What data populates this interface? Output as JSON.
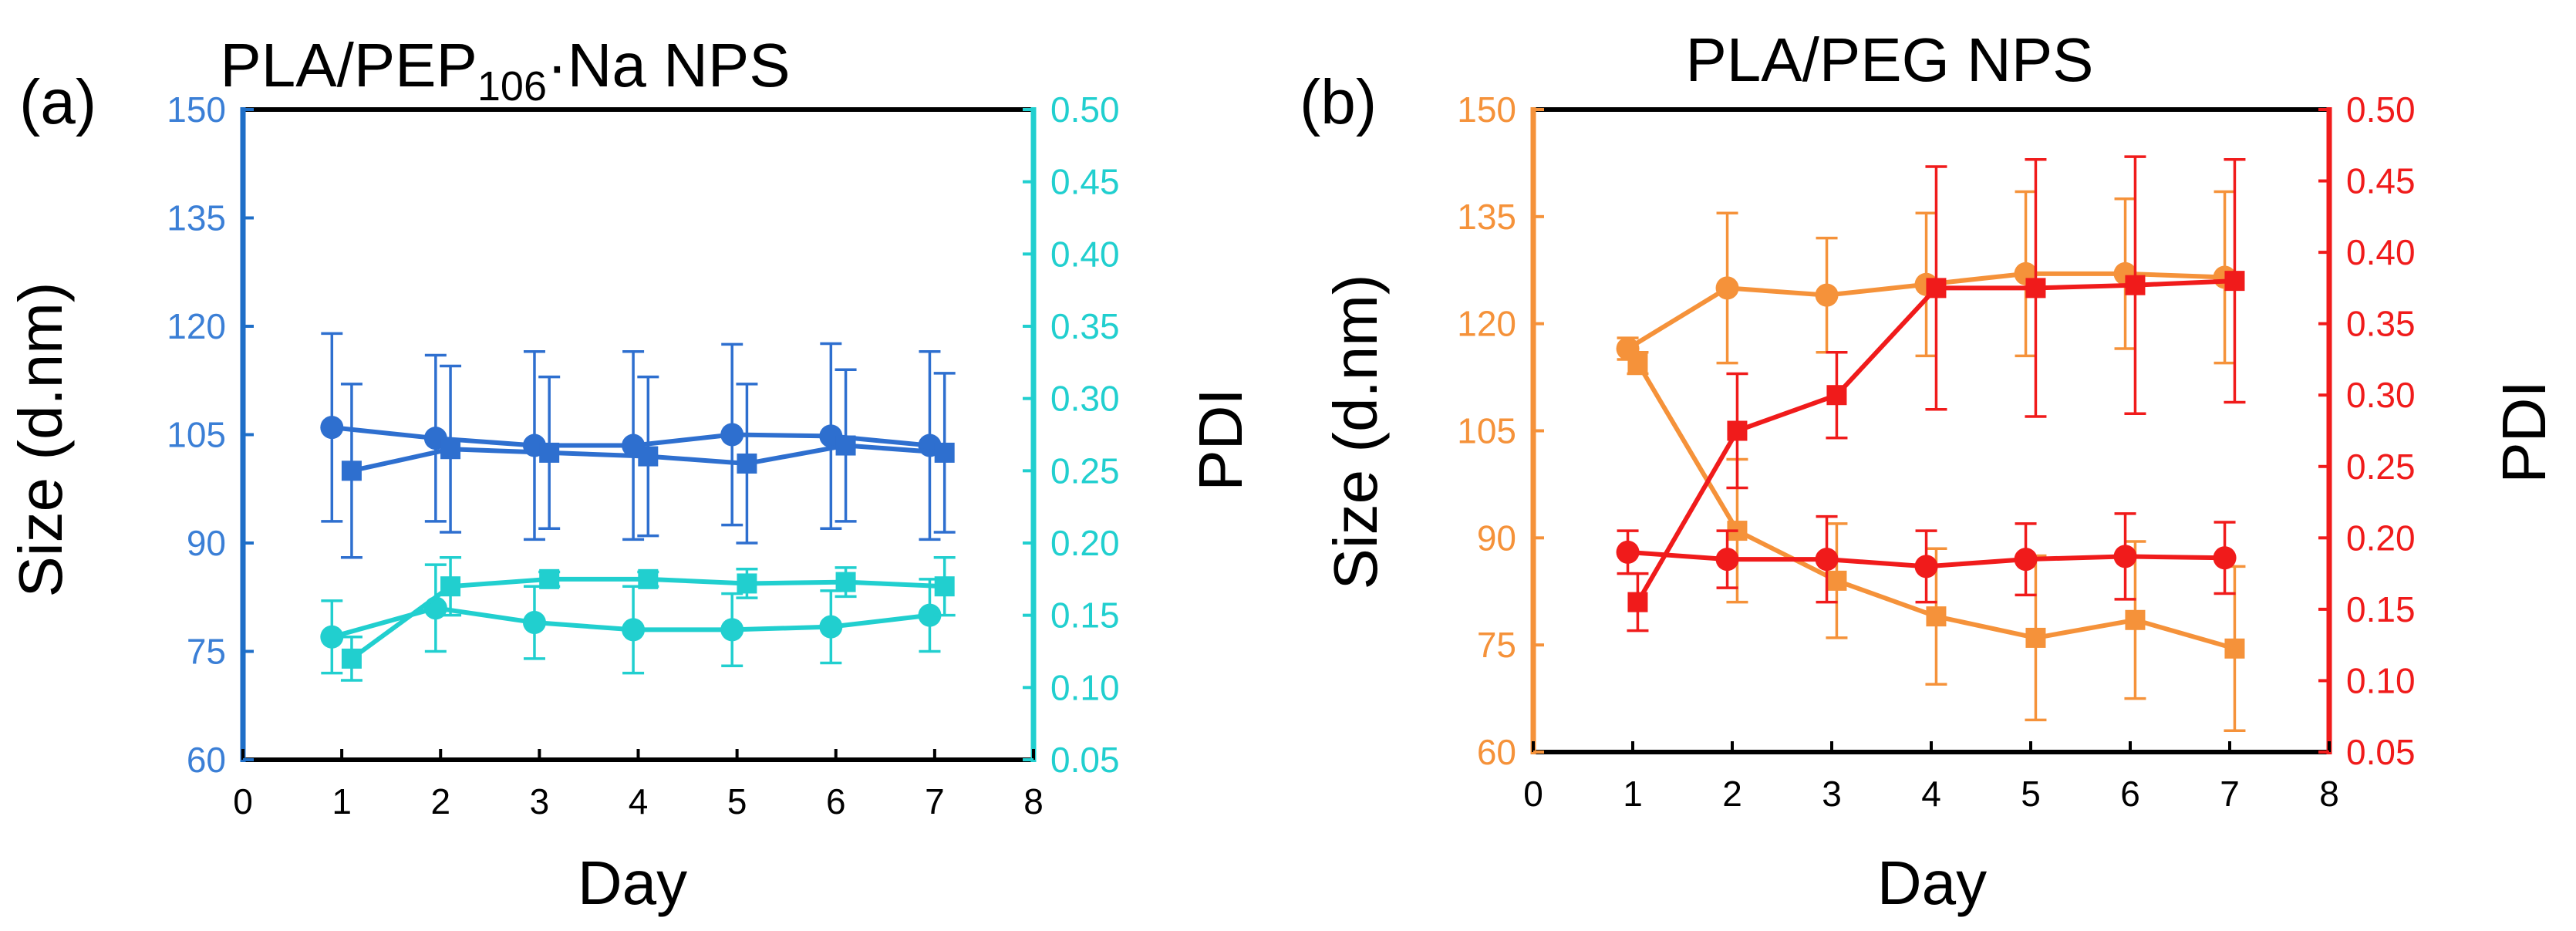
{
  "chart_data": [
    {
      "panel_label": "(a)",
      "type": "line",
      "title": "PLA/PEP",
      "title_subscript": "106",
      "title_suffix": "·Na NPS",
      "xlabel": "Day",
      "ylabel_left": "Size (d.nm)",
      "ylabel_right": "PDI",
      "xlim": [
        0,
        8
      ],
      "xticks": [
        "0",
        "1",
        "2",
        "3",
        "4",
        "5",
        "6",
        "7",
        "8"
      ],
      "ylim_left": [
        60,
        150
      ],
      "yticks_left": [
        "60",
        "75",
        "90",
        "105",
        "120",
        "135",
        "150"
      ],
      "ylim_right": [
        0.05,
        0.5
      ],
      "yticks_right": [
        "0.05",
        "0.10",
        "0.15",
        "0.20",
        "0.25",
        "0.30",
        "0.35",
        "0.40",
        "0.45",
        "0.50"
      ],
      "left_color": "#3b7fd6",
      "right_color": "#21cfcf",
      "left_axis_color": "#1f6fc8",
      "right_axis_color": "#21cfcf",
      "series": [
        {
          "name": "Size (circle)",
          "axis": "left",
          "marker": "circle",
          "color": "#2e6fcf",
          "x": [
            0.9,
            1.95,
            2.95,
            3.95,
            4.95,
            5.95,
            6.95
          ],
          "y": [
            106,
            104.5,
            103.5,
            103.5,
            105,
            104.8,
            103.5
          ],
          "err": [
            13,
            11.5,
            13,
            13,
            12.5,
            12.8,
            13
          ]
        },
        {
          "name": "Size (square)",
          "axis": "left",
          "marker": "square",
          "color": "#2e6fcf",
          "x": [
            1.1,
            2.1,
            3.1,
            4.1,
            5.1,
            6.1,
            7.1
          ],
          "y": [
            100,
            103,
            102.5,
            102,
            101,
            103.5,
            102.5
          ],
          "err": [
            12,
            11.5,
            10.5,
            11,
            11,
            10.5,
            11
          ]
        },
        {
          "name": "PDI (circle)",
          "axis": "right",
          "marker": "circle",
          "color": "#21cfcf",
          "x": [
            0.9,
            1.95,
            2.95,
            3.95,
            4.95,
            5.95,
            6.95
          ],
          "y": [
            0.135,
            0.155,
            0.145,
            0.14,
            0.14,
            0.142,
            0.15
          ],
          "err": [
            0.025,
            0.03,
            0.025,
            0.03,
            0.025,
            0.025,
            0.025
          ]
        },
        {
          "name": "PDI (square)",
          "axis": "right",
          "marker": "square",
          "color": "#21cfcf",
          "x": [
            1.1,
            2.1,
            3.1,
            4.1,
            5.1,
            6.1,
            7.1
          ],
          "y": [
            0.12,
            0.17,
            0.175,
            0.175,
            0.172,
            0.173,
            0.17
          ],
          "err": [
            0.015,
            0.02,
            0.005,
            0.005,
            0.01,
            0.01,
            0.02
          ]
        }
      ]
    },
    {
      "panel_label": "(b)",
      "type": "line",
      "title": "PLA/PEG NPS",
      "title_subscript": "",
      "title_suffix": "",
      "xlabel": "Day",
      "ylabel_left": "Size (d.nm)",
      "ylabel_right": "PDI",
      "xlim": [
        0,
        8
      ],
      "xticks": [
        "0",
        "1",
        "2",
        "3",
        "4",
        "5",
        "6",
        "7",
        "8"
      ],
      "ylim_left": [
        60,
        150
      ],
      "yticks_left": [
        "60",
        "75",
        "90",
        "105",
        "120",
        "135",
        "150"
      ],
      "ylim_right": [
        0.05,
        0.5
      ],
      "yticks_right": [
        "0.05",
        "0.10",
        "0.15",
        "0.20",
        "0.25",
        "0.30",
        "0.35",
        "0.40",
        "0.45",
        "0.50"
      ],
      "left_color": "#f5923a",
      "right_color": "#f01b1b",
      "left_axis_color": "#f5923a",
      "right_axis_color": "#f01b1b",
      "series": [
        {
          "name": "Size (circle)",
          "axis": "left",
          "marker": "circle",
          "color": "#f5923a",
          "x": [
            0.95,
            1.95,
            2.95,
            3.95,
            4.95,
            5.95,
            6.95
          ],
          "y": [
            116.5,
            125,
            124,
            125.5,
            127,
            127,
            126.5
          ],
          "err": [
            1.5,
            10.5,
            8,
            10,
            11.5,
            10.5,
            12
          ]
        },
        {
          "name": "Size (square)",
          "axis": "left",
          "marker": "square",
          "color": "#f5923a",
          "x": [
            1.05,
            2.05,
            3.05,
            4.05,
            5.05,
            6.05,
            7.05
          ],
          "y": [
            114.5,
            91,
            84,
            79,
            76,
            78.5,
            74.5
          ],
          "err": [
            1.5,
            10,
            8,
            9.5,
            11.5,
            11,
            11.5
          ]
        },
        {
          "name": "PDI (circle)",
          "axis": "right",
          "marker": "circle",
          "color": "#f01b1b",
          "x": [
            0.95,
            1.95,
            2.95,
            3.95,
            4.95,
            5.95,
            6.95
          ],
          "y": [
            0.19,
            0.185,
            0.185,
            0.18,
            0.185,
            0.187,
            0.186
          ],
          "err": [
            0.015,
            0.02,
            0.03,
            0.025,
            0.025,
            0.03,
            0.025
          ]
        },
        {
          "name": "PDI (square)",
          "axis": "right",
          "marker": "square",
          "color": "#f01b1b",
          "x": [
            1.05,
            2.05,
            3.05,
            4.05,
            5.05,
            6.05,
            7.05
          ],
          "y": [
            0.155,
            0.275,
            0.3,
            0.375,
            0.375,
            0.377,
            0.38
          ],
          "err": [
            0.02,
            0.04,
            0.03,
            0.085,
            0.09,
            0.09,
            0.085
          ]
        }
      ]
    }
  ]
}
